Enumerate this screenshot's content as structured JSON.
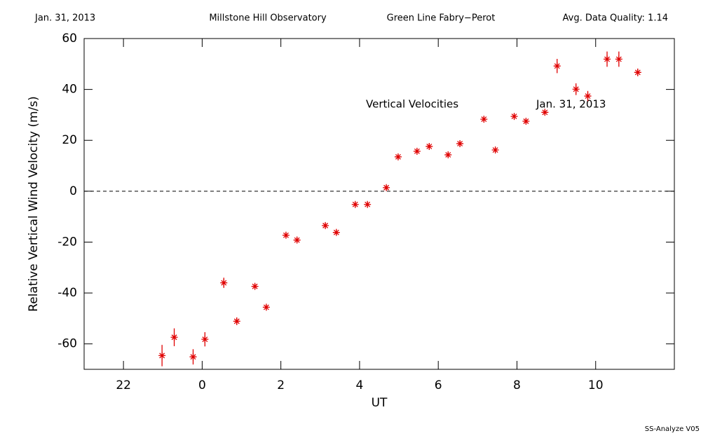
{
  "chart_data": {
    "type": "scatter",
    "header": [
      "Jan. 31, 2013",
      "Millstone Hill Observatory",
      "Green Line Fabry−Perot",
      "Avg. Data Quality: 1.14"
    ],
    "annotations": [
      "Vertical Velocities",
      "Jan. 31, 2013"
    ],
    "footer": "SS-Analyze V05",
    "xlabel": "UT",
    "ylabel": "Relative Vertical Wind Velocity (m/s)",
    "xlim": [
      -3,
      12
    ],
    "xticks": [
      {
        "value": -2,
        "label": "22"
      },
      0,
      2,
      4,
      6,
      8,
      10
    ],
    "ylim": [
      -70,
      60
    ],
    "yticks": [
      -60,
      -40,
      -20,
      0,
      20,
      40,
      60
    ],
    "hline": 0,
    "color": "#e00000",
    "x": [
      -1.02,
      -0.71,
      -0.23,
      0.07,
      0.55,
      0.88,
      1.34,
      1.63,
      2.13,
      2.41,
      3.13,
      3.41,
      3.89,
      4.2,
      4.68,
      4.98,
      5.46,
      5.77,
      6.25,
      6.55,
      7.16,
      7.45,
      7.93,
      8.23,
      8.71,
      9.02,
      9.5,
      9.8,
      10.29,
      10.59,
      11.07
    ],
    "values": [
      -64.6,
      -57.4,
      -65.1,
      -58.2,
      -36,
      -51.1,
      -37.4,
      -45.6,
      -17.3,
      -19.2,
      -13.5,
      -16.2,
      -5.2,
      -5.2,
      1.4,
      13.5,
      15.7,
      17.6,
      14.3,
      18.7,
      28.3,
      16.2,
      29.4,
      27.5,
      31.0,
      49.2,
      40.1,
      37.4,
      51.9,
      51.9,
      46.7
    ],
    "errors": [
      4.2,
      3.5,
      3,
      2.8,
      2,
      1.5,
      1,
      1,
      1,
      1,
      1,
      1,
      1,
      1,
      1,
      1,
      1,
      1,
      1,
      1,
      1,
      1,
      1,
      1,
      1,
      2.8,
      2.3,
      2,
      3,
      3,
      1.5
    ]
  }
}
